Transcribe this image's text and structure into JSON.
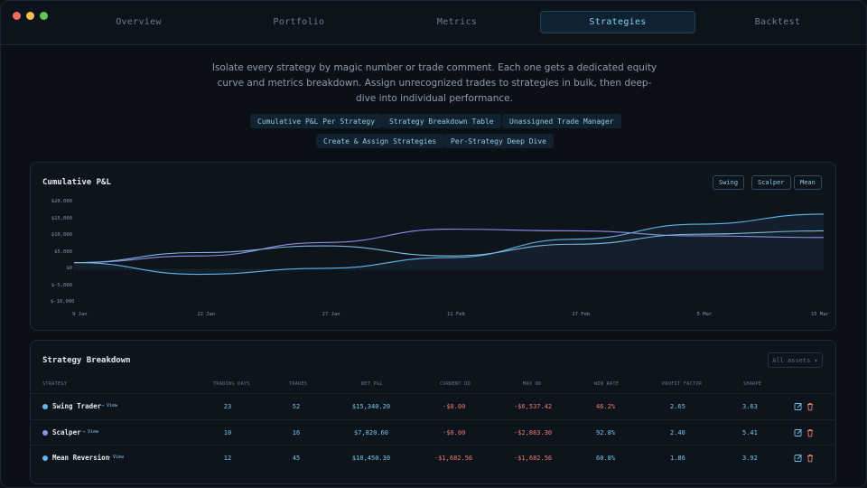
{
  "tabs": [
    {
      "label": "Overview",
      "active": false
    },
    {
      "label": "Portfolio",
      "active": false
    },
    {
      "label": "Metrics",
      "active": false
    },
    {
      "label": "Strategies",
      "active": true
    },
    {
      "label": "Backtest",
      "active": false
    }
  ],
  "intro": {
    "text": "Isolate every strategy by magic number or trade comment. Each one gets a dedicated equity curve and metrics breakdown. Assign unrecognized trades to strategies in bulk, then deep-dive into individual performance."
  },
  "features": [
    "Cumulative P&L Per Strategy",
    "Strategy Breakdown Table",
    "Unassigned Trade Manager",
    "Create & Assign Strategies",
    "Per-Strategy Deep Dive"
  ],
  "pnl_card": {
    "title": "Cumulative P&L",
    "legend": [
      "Swing",
      "Scalper",
      "Mean"
    ]
  },
  "chart_data": {
    "type": "line",
    "title": "Cumulative P&L",
    "x": [
      "9 Jan",
      "22 Jan",
      "27 Jan",
      "11 Feb",
      "27 Feb",
      "5 Mar",
      "15 Mar"
    ],
    "yticks": [
      "$20,000",
      "$15,000",
      "$10,000",
      "$5,000",
      "$0",
      "$-5,000",
      "$-10,000"
    ],
    "ylim": [
      -10000,
      20000
    ],
    "series": [
      {
        "name": "Swing",
        "color": "#5fb6e6",
        "values": [
          2000,
          -1500,
          300,
          3500,
          9000,
          13500,
          16500
        ]
      },
      {
        "name": "Scalper",
        "color": "#8a8fe6",
        "values": [
          2000,
          4000,
          8000,
          12000,
          11500,
          10000,
          9500
        ]
      },
      {
        "name": "Mean",
        "color": "#7fb8dd",
        "values": [
          2000,
          5000,
          7000,
          4000,
          7500,
          10500,
          11500
        ]
      }
    ],
    "grid": false,
    "legend": "top-right"
  },
  "breakdown": {
    "title": "Strategy Breakdown",
    "filter_label": "All assets ▾",
    "columns": [
      "STRATEGY",
      "TRADING DAYS",
      "TRADES",
      "NET P&L",
      "CURRENT DD",
      "MAX DD",
      "WIN RATE",
      "PROFIT FACTOR",
      "SHARPE"
    ],
    "rows": [
      {
        "name": "Swing Trader",
        "view": "→ View",
        "dot": "#63b8ea",
        "days": "23",
        "trades": "52",
        "net": "$15,340.20",
        "cur_dd": "-$0.00",
        "max_dd": "-$6,537.42",
        "win": "46.2%",
        "pf": "2.65",
        "sharpe": "3.63"
      },
      {
        "name": "Scalper",
        "view": "→ View",
        "dot": "#8b92ea",
        "days": "10",
        "trades": "16",
        "net": "$7,820.60",
        "cur_dd": "-$0.00",
        "max_dd": "-$2,863.30",
        "win": "92.8%",
        "pf": "2.40",
        "sharpe": "5.41"
      },
      {
        "name": "Mean Reversion",
        "view": "→ View",
        "dot": "#63b8ea",
        "days": "12",
        "trades": "45",
        "net": "$10,450.30",
        "cur_dd": "-$1,682.56",
        "max_dd": "-$1,682.56",
        "win": "60.8%",
        "pf": "1.86",
        "sharpe": "3.92"
      }
    ]
  }
}
